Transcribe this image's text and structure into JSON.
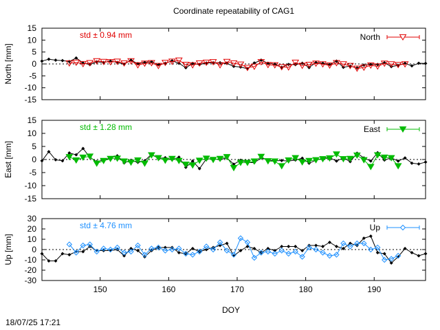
{
  "title": "Coordinate repeatability of CAG1",
  "timestamp": "18/07/25 17:21",
  "xlabel": "DOY",
  "chart_data": [
    {
      "type": "line",
      "panel": "north",
      "ylabel": "North [mm]",
      "ylim": [
        -15,
        15
      ],
      "yticks": [
        15,
        10,
        5,
        0,
        -5,
        -10,
        -15
      ],
      "xlim": [
        141.5,
        197.5
      ],
      "xticks": [
        150,
        160,
        170,
        180,
        190
      ],
      "std_text": "std ± 0.94 mm",
      "legend": "North",
      "color": "#e00000",
      "marker": "triangle-down-open",
      "series": [
        {
          "name": "North",
          "x": [
            145.5,
            146.5,
            147.5,
            148.5,
            149.5,
            150.5,
            151.5,
            152.5,
            153.5,
            154.5,
            155.5,
            156.5,
            157.5,
            158.5,
            159.5,
            160.5,
            161.5,
            162.5,
            163.5,
            164.5,
            165.5,
            166.5,
            167.5,
            168.5,
            169.5,
            170.5,
            171.5,
            172.5,
            173.5,
            174.5,
            175.5,
            176.5,
            177.5,
            178.5,
            179.5,
            180.5,
            181.5,
            182.5,
            183.5,
            184.5,
            185.5,
            186.5,
            187.5,
            188.5,
            189.5,
            190.5,
            191.5,
            192.5,
            193.5,
            194.5
          ],
          "values": [
            0.3,
            0.6,
            0,
            0.4,
            1.2,
            0.9,
            0.8,
            1.0,
            0.3,
            1.2,
            -0.5,
            0.2,
            0.4,
            -0.8,
            0.5,
            1.0,
            1.5,
            -0.3,
            -0.5,
            0.3,
            0.6,
            0.8,
            -0.5,
            0.9,
            0.3,
            -0.2,
            -1.6,
            -1.1,
            0.8,
            -0.4,
            -0.5,
            -1.3,
            -1.4,
            0.6,
            -0.7,
            -0.3,
            0.2,
            -0.1,
            -0.6,
            0.4,
            -0.1,
            -0.8,
            -1.9,
            -1.5,
            -0.6,
            -1.0,
            0.2,
            -0.1,
            -0.4,
            -0.1
          ]
        },
        {
          "name": "",
          "x": [
            141.5,
            142.5,
            143.5,
            144.5,
            145.5,
            146.5,
            147.5,
            148.5,
            149.5,
            150.5,
            151.5,
            152.5,
            153.5,
            154.5,
            155.5,
            156.5,
            157.5,
            158.5,
            159.5,
            160.5,
            161.5,
            162.5,
            163.5,
            164.5,
            165.5,
            166.5,
            167.5,
            168.5,
            169.5,
            170.5,
            171.5,
            172.5,
            173.5,
            174.5,
            175.5,
            176.5,
            177.5,
            178.5,
            179.5,
            180.5,
            181.5,
            182.5,
            183.5,
            184.5,
            185.5,
            186.5,
            187.5,
            188.5,
            189.5,
            190.5,
            191.5,
            192.5,
            193.5,
            194.5,
            195.5,
            196.5,
            197.5
          ],
          "values": [
            1.2,
            2.0,
            1.6,
            1.4,
            1.0,
            2.5,
            0.4,
            -0.3,
            0.9,
            0.6,
            1.2,
            0.6,
            -0.1,
            1.6,
            0.1,
            0.7,
            0.9,
            -0.4,
            0.3,
            1.3,
            0.3,
            -1.6,
            0.2,
            -0.3,
            0.4,
            0.5,
            0.5,
            0.2,
            -1.0,
            -1.3,
            -2.0,
            0.4,
            1.6,
            0.3,
            -0.1,
            -1.4,
            -0.2,
            -0.3,
            0.3,
            -1.5,
            0.6,
            0.3,
            -0.3,
            1.2,
            -1.4,
            -0.9,
            -1.7,
            -0.5,
            -0.2,
            -0.2,
            0.5,
            -1.1,
            -0.6,
            0.3,
            -0.8,
            0.3,
            0.2
          ]
        }
      ]
    },
    {
      "type": "line",
      "panel": "east",
      "ylabel": "East [mm]",
      "ylim": [
        -15,
        15
      ],
      "yticks": [
        15,
        10,
        5,
        0,
        -5,
        -10,
        -15
      ],
      "xlim": [
        141.5,
        197.5
      ],
      "xticks": [
        150,
        160,
        170,
        180,
        190
      ],
      "std_text": "std ± 1.28 mm",
      "legend": "East",
      "color": "#00bb00",
      "marker": "triangle-down-filled",
      "series": [
        {
          "name": "East",
          "x": [
            145.5,
            146.5,
            147.5,
            148.5,
            149.5,
            150.5,
            151.5,
            152.5,
            153.5,
            154.5,
            155.5,
            156.5,
            157.5,
            158.5,
            159.5,
            160.5,
            161.5,
            162.5,
            163.5,
            164.5,
            165.5,
            166.5,
            167.5,
            168.5,
            169.5,
            170.5,
            171.5,
            172.5,
            173.5,
            174.5,
            175.5,
            176.5,
            177.5,
            178.5,
            179.5,
            180.5,
            181.5,
            182.5,
            183.5,
            184.5,
            185.5,
            186.5,
            187.5,
            188.5,
            189.5,
            190.5,
            191.5,
            192.5,
            193.5
          ],
          "values": [
            1.0,
            -0.3,
            0.8,
            1.2,
            -1.5,
            -0.5,
            0.3,
            0.4,
            -0.7,
            -1.1,
            -0.3,
            -1.5,
            1.7,
            0.6,
            -0.4,
            0.3,
            -0.5,
            -1.9,
            -2.2,
            -0.4,
            0.4,
            -0.1,
            0.3,
            1.0,
            -3.2,
            -1.2,
            -1.2,
            -0.7,
            1.1,
            -0.6,
            -0.7,
            -2.5,
            -0.3,
            0.6,
            -1.0,
            -0.5,
            -0.2,
            0.2,
            0.5,
            2.0,
            0.2,
            0.3,
            1.6,
            -0.2,
            -2.8,
            1.7,
            0.8,
            0.6,
            -2.5
          ]
        },
        {
          "name": "",
          "x": [
            141.5,
            142.5,
            143.5,
            144.5,
            145.5,
            146.5,
            147.5,
            148.5,
            149.5,
            150.5,
            151.5,
            152.5,
            153.5,
            154.5,
            155.5,
            156.5,
            157.5,
            158.5,
            159.5,
            160.5,
            161.5,
            162.5,
            163.5,
            164.5,
            165.5,
            166.5,
            167.5,
            168.5,
            169.5,
            170.5,
            171.5,
            172.5,
            173.5,
            174.5,
            175.5,
            176.5,
            177.5,
            178.5,
            179.5,
            180.5,
            181.5,
            182.5,
            183.5,
            184.5,
            185.5,
            186.5,
            187.5,
            188.5,
            189.5,
            190.5,
            191.5,
            192.5,
            193.5,
            194.5,
            195.5,
            196.5,
            197.5
          ],
          "values": [
            -0.5,
            3.0,
            -0.1,
            -0.5,
            2.5,
            1.8,
            4.2,
            0.8,
            -0.8,
            -0.2,
            0.6,
            1.4,
            -1.3,
            -0.3,
            -1.1,
            -0.5,
            2.0,
            0.4,
            0.7,
            -0.1,
            0.9,
            -3.0,
            -0.6,
            -3.5,
            0.2,
            0.3,
            -0.1,
            0.6,
            -1.8,
            -0.3,
            -1.1,
            -1.2,
            0.6,
            -0.2,
            -0.5,
            -0.4,
            -0.6,
            -0.2,
            0.5,
            -1.4,
            -0.3,
            0.5,
            0.7,
            -0.6,
            0.6,
            -0.8,
            2.4,
            0.6,
            -0.6,
            2.6,
            -0.2,
            0.6,
            -0.6,
            0.6,
            -1.4,
            -1.7,
            -1.0
          ]
        }
      ]
    },
    {
      "type": "line",
      "panel": "up",
      "ylabel": "Up [mm]",
      "ylim": [
        -30,
        30
      ],
      "yticks": [
        30,
        20,
        10,
        0,
        -10,
        -20,
        -30
      ],
      "xlim": [
        141.5,
        197.5
      ],
      "xticks": [
        150,
        160,
        170,
        180,
        190
      ],
      "std_text": "std ± 4.76 mm",
      "legend": "Up",
      "color": "#1e90ff",
      "marker": "diamond-open",
      "series": [
        {
          "name": "Up",
          "x": [
            145.5,
            146.5,
            147.5,
            148.5,
            149.5,
            150.5,
            151.5,
            152.5,
            153.5,
            154.5,
            155.5,
            156.5,
            157.5,
            158.5,
            159.5,
            160.5,
            161.5,
            162.5,
            163.5,
            164.5,
            165.5,
            166.5,
            167.5,
            168.5,
            169.5,
            170.5,
            171.5,
            172.5,
            173.5,
            174.5,
            175.5,
            176.5,
            177.5,
            178.5,
            179.5,
            180.5,
            181.5,
            182.5,
            183.5,
            184.5,
            185.5,
            186.5,
            187.5,
            188.5,
            189.5,
            190.5,
            191.5,
            192.5,
            193.5
          ],
          "values": [
            5,
            -3,
            4,
            5,
            -2,
            1,
            0,
            2,
            -3,
            -2,
            4,
            -5,
            1,
            2,
            -1,
            0,
            1,
            -4,
            -5,
            -2,
            3,
            0,
            7,
            -1,
            -5,
            11,
            7,
            -8,
            -3,
            -2,
            -4,
            -1,
            -4,
            -2,
            -7,
            2,
            0,
            -3,
            -6,
            -5,
            6,
            3,
            6,
            6,
            0,
            2,
            -10,
            -9,
            -6
          ]
        },
        {
          "name": "",
          "x": [
            141.5,
            142.5,
            143.5,
            144.5,
            145.5,
            146.5,
            147.5,
            148.5,
            149.5,
            150.5,
            151.5,
            152.5,
            153.5,
            154.5,
            155.5,
            156.5,
            157.5,
            158.5,
            159.5,
            160.5,
            161.5,
            162.5,
            163.5,
            164.5,
            165.5,
            166.5,
            167.5,
            168.5,
            169.5,
            170.5,
            171.5,
            172.5,
            173.5,
            174.5,
            175.5,
            176.5,
            177.5,
            178.5,
            179.5,
            180.5,
            181.5,
            182.5,
            183.5,
            184.5,
            185.5,
            186.5,
            187.5,
            188.5,
            189.5,
            190.5,
            191.5,
            192.5,
            193.5,
            194.5,
            195.5,
            196.5,
            197.5
          ],
          "values": [
            -4,
            -11,
            -11,
            -4,
            -5,
            -2,
            -2,
            3,
            -1,
            -1,
            -1,
            0,
            -6,
            1,
            -1,
            -7,
            -1,
            2,
            2,
            2,
            -3,
            -4,
            1,
            -2,
            0,
            2,
            4,
            6,
            -6,
            -1,
            3,
            1,
            -3,
            1,
            -1,
            3,
            3,
            3,
            -1,
            4,
            4,
            3,
            7,
            3,
            1,
            6,
            4,
            11,
            13,
            -3,
            -4,
            -13,
            -7,
            1,
            -3,
            -6,
            -4
          ]
        }
      ]
    }
  ]
}
